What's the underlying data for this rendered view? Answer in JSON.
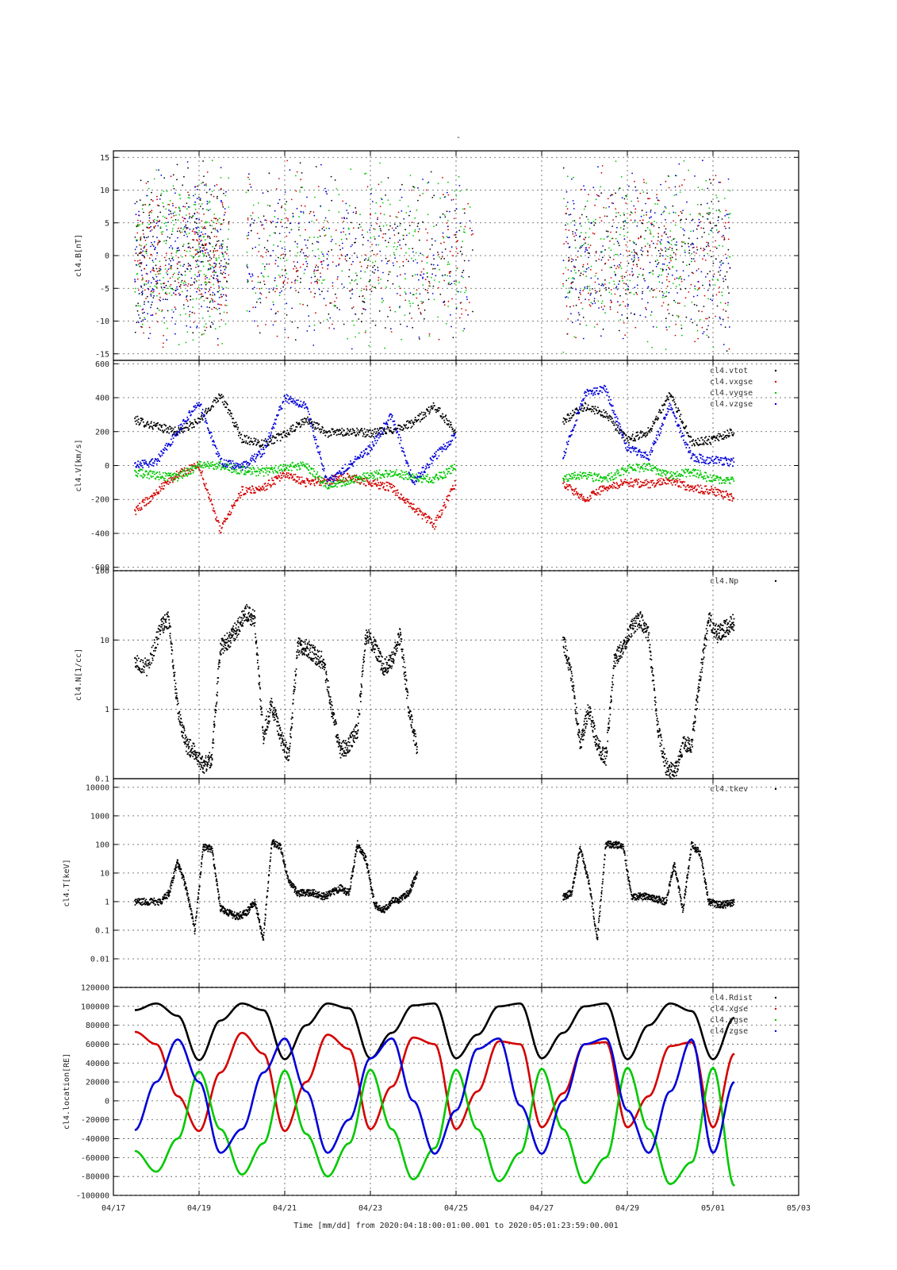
{
  "figure": {
    "top_title": "-",
    "time_label": "Time [mm/dd]  from 2020:04:18:00:01:00.001  to  2020:05:01:23:59:00.001"
  },
  "colors": {
    "black": "#000000",
    "red": "#d40000",
    "green": "#00c800",
    "blue": "#0000d8"
  },
  "chart_data": [
    {
      "type": "scatter",
      "ylabel": "cl4.B[nT]",
      "ylim": [
        -16,
        16
      ],
      "yscale": "linear",
      "yticks": [
        -15,
        -10,
        -5,
        0,
        5,
        10,
        15
      ],
      "ytick_labels": [
        "-15",
        "-10",
        "-5",
        "0",
        "5",
        "10",
        "15"
      ],
      "grid": true,
      "legend_placement": "top-right",
      "series": [
        {
          "name": "",
          "color_key": "black",
          "seed": 11
        },
        {
          "name": "",
          "color_key": "red",
          "seed": 12
        },
        {
          "name": "",
          "color_key": "green",
          "seed": 13
        },
        {
          "name": "",
          "color_key": "blue",
          "seed": 14
        }
      ]
    },
    {
      "type": "scatter",
      "ylabel": "cl4.V[km/s]",
      "ylim": [
        -620,
        620
      ],
      "yscale": "linear",
      "yticks": [
        -600,
        -400,
        -200,
        0,
        200,
        400,
        600
      ],
      "ytick_labels": [
        "-600",
        "-400",
        "-200",
        "0",
        "200",
        "400",
        "600"
      ],
      "grid": true,
      "legend_placement": "top-right",
      "series": [
        {
          "name": "cl4.vtot",
          "color_key": "black",
          "x": [
            0.0,
            0.5,
            1.0,
            1.5,
            2.0,
            2.5,
            3.0,
            3.5,
            4.0,
            4.5,
            5.0,
            5.5,
            6.0,
            6.5,
            7.0,
            7.5,
            8.0,
            8.5,
            9.0,
            9.5,
            10.0,
            10.5,
            11.0,
            11.5,
            12.0,
            12.5,
            13.0,
            13.5,
            14.0
          ],
          "y": [
            270,
            230,
            200,
            260,
            420,
            160,
            130,
            180,
            270,
            190,
            200,
            190,
            210,
            250,
            350,
            200,
            null,
            null,
            null,
            null,
            260,
            350,
            300,
            150,
            200,
            420,
            140,
            150,
            200
          ]
        },
        {
          "name": "cl4.vxgse",
          "color_key": "red",
          "x": [
            0.0,
            0.5,
            1.0,
            1.5,
            2.0,
            2.5,
            3.0,
            3.5,
            4.0,
            4.5,
            5.0,
            5.5,
            6.0,
            6.5,
            7.0,
            7.5,
            8.0,
            8.5,
            9.0,
            9.5,
            10.0,
            10.5,
            11.0,
            11.5,
            12.0,
            12.5,
            13.0,
            13.5,
            14.0
          ],
          "y": [
            -270,
            -160,
            -50,
            0,
            -380,
            -150,
            -130,
            -50,
            -100,
            -90,
            -70,
            -100,
            -130,
            -250,
            -350,
            -100,
            null,
            null,
            null,
            null,
            -100,
            -200,
            -130,
            -100,
            -110,
            -90,
            -130,
            -150,
            -190
          ]
        },
        {
          "name": "cl4.vygse",
          "color_key": "green",
          "x": [
            0.0,
            0.5,
            1.0,
            1.5,
            2.0,
            2.5,
            3.0,
            3.5,
            4.0,
            4.5,
            5.0,
            5.5,
            6.0,
            6.5,
            7.0,
            7.5,
            8.0,
            8.5,
            9.0,
            9.5,
            10.0,
            10.5,
            11.0,
            11.5,
            12.0,
            12.5,
            13.0,
            13.5,
            14.0
          ],
          "y": [
            -40,
            -60,
            -70,
            0,
            0,
            -30,
            -40,
            -10,
            0,
            -120,
            -90,
            -60,
            -40,
            -70,
            -80,
            -10,
            null,
            null,
            null,
            null,
            -70,
            -60,
            -80,
            -20,
            -10,
            -60,
            -40,
            -80,
            -90
          ]
        },
        {
          "name": "cl4.vzgse",
          "color_key": "blue",
          "x": [
            0.0,
            0.5,
            1.0,
            1.5,
            2.0,
            2.5,
            3.0,
            3.5,
            4.0,
            4.5,
            5.0,
            5.5,
            6.0,
            6.5,
            7.0,
            7.5,
            8.0,
            8.5,
            9.0,
            9.5,
            10.0,
            10.5,
            11.0,
            11.5,
            12.0,
            12.5,
            13.0,
            13.5,
            14.0
          ],
          "y": [
            0,
            20,
            200,
            380,
            20,
            -10,
            80,
            400,
            350,
            -100,
            0,
            100,
            300,
            -100,
            50,
            180,
            null,
            null,
            null,
            null,
            50,
            420,
            450,
            100,
            50,
            350,
            50,
            30,
            20
          ]
        }
      ]
    },
    {
      "type": "scatter",
      "ylabel": "cl4.N[1/cc]",
      "ylim": [
        0.1,
        100
      ],
      "yscale": "log",
      "yticks": [
        0.1,
        1,
        10,
        100
      ],
      "ytick_labels": [
        "0.1",
        "1",
        "10",
        "100"
      ],
      "grid": true,
      "legend_placement": "top-right",
      "series": [
        {
          "name": "cl4.Np",
          "color_key": "black",
          "x": [
            0.0,
            0.3,
            0.6,
            0.8,
            1.0,
            1.2,
            1.4,
            1.6,
            1.8,
            2.0,
            2.2,
            2.4,
            2.6,
            2.8,
            3.0,
            3.2,
            3.4,
            3.6,
            3.8,
            4.0,
            4.2,
            4.4,
            4.6,
            4.8,
            5.0,
            5.2,
            5.4,
            5.6,
            5.8,
            6.0,
            6.2,
            6.4,
            6.6,
            6.8,
            7.0,
            7.2,
            7.4,
            7.6,
            7.8,
            8.0,
            8.2,
            8.4,
            8.6,
            8.8,
            9.0,
            9.2,
            9.4,
            9.6,
            9.8,
            10.0,
            10.2,
            10.4,
            10.6,
            10.8,
            11.0,
            11.2,
            11.4,
            11.6,
            11.8,
            12.0,
            12.2,
            12.4,
            12.6,
            12.8,
            13.0,
            13.2,
            13.4,
            13.6,
            13.8,
            14.0
          ],
          "y": [
            5,
            4,
            15,
            20,
            1,
            0.3,
            0.25,
            0.15,
            0.2,
            8,
            10,
            15,
            25,
            20,
            0.4,
            1.2,
            0.4,
            0.2,
            8,
            8,
            6,
            5,
            1,
            0.25,
            0.3,
            0.5,
            12,
            8,
            4,
            5,
            12,
            1,
            0.25,
            null,
            null,
            null,
            null,
            null,
            null,
            null,
            null,
            null,
            null,
            null,
            null,
            null,
            null,
            null,
            null,
            10,
            3,
            0.3,
            1,
            0.3,
            0.2,
            5,
            8,
            15,
            20,
            12,
            0.6,
            0.15,
            0.12,
            0.3,
            0.3,
            3,
            20,
            12,
            15,
            18
          ]
        }
      ]
    },
    {
      "type": "scatter",
      "ylabel": "cl4.T[keV]",
      "ylim": [
        0.001,
        20000
      ],
      "yscale": "log",
      "yticks": [
        0.01,
        0.1,
        1,
        10,
        100,
        1000,
        10000
      ],
      "ytick_labels": [
        "0.01",
        "0.1",
        "1",
        "10",
        "100",
        "1000",
        "10000"
      ],
      "grid": true,
      "legend_placement": "top-right",
      "series": [
        {
          "name": "cl4.tkev",
          "color_key": "black",
          "x": [
            0.0,
            0.3,
            0.6,
            0.8,
            1.0,
            1.2,
            1.4,
            1.6,
            1.8,
            2.0,
            2.2,
            2.4,
            2.6,
            2.8,
            3.0,
            3.2,
            3.4,
            3.6,
            3.8,
            4.0,
            4.2,
            4.4,
            4.6,
            4.8,
            5.0,
            5.2,
            5.4,
            5.6,
            5.8,
            6.0,
            6.2,
            6.4,
            6.6,
            6.8,
            7.0,
            7.2,
            7.4,
            7.6,
            7.8,
            8.0,
            8.2,
            8.4,
            8.6,
            8.8,
            9.0,
            9.2,
            9.4,
            9.6,
            9.8,
            10.0,
            10.2,
            10.4,
            10.6,
            10.8,
            11.0,
            11.2,
            11.4,
            11.6,
            11.8,
            12.0,
            12.2,
            12.4,
            12.6,
            12.8,
            13.0,
            13.2,
            13.4,
            13.6,
            13.8,
            14.0
          ],
          "y": [
            1,
            1,
            1,
            2,
            25,
            3,
            0.1,
            80,
            70,
            0.6,
            0.4,
            0.3,
            0.4,
            1,
            0.05,
            120,
            80,
            5,
            2,
            2,
            2,
            1.5,
            2,
            3,
            2,
            100,
            30,
            0.8,
            0.5,
            1,
            1.2,
            2,
            10,
            null,
            null,
            null,
            null,
            null,
            null,
            null,
            null,
            null,
            null,
            null,
            null,
            null,
            null,
            null,
            null,
            1.5,
            2,
            80,
            5,
            0.05,
            100,
            100,
            90,
            1.5,
            1.5,
            1.5,
            1.2,
            1,
            20,
            0.5,
            100,
            50,
            1,
            0.8,
            0.8,
            1
          ]
        }
      ]
    },
    {
      "type": "line",
      "ylabel": "cl4.location[RE]",
      "ylim": [
        -100000,
        120000
      ],
      "yscale": "linear",
      "yticks": [
        -100000,
        -80000,
        -60000,
        -40000,
        -20000,
        0,
        20000,
        40000,
        60000,
        80000,
        100000,
        120000
      ],
      "ytick_labels": [
        "-100000",
        "-80000",
        "-60000",
        "-40000",
        "-20000",
        "0",
        "20000",
        "40000",
        "60000",
        "80000",
        "100000",
        "120000"
      ],
      "grid": true,
      "legend_placement": "top-right",
      "series": [
        {
          "name": "cl4.Rdist",
          "color_key": "black",
          "x": [
            0.0,
            0.5,
            1.0,
            1.5,
            2.0,
            2.5,
            3.0,
            3.5,
            4.0,
            4.5,
            5.0,
            5.5,
            6.0,
            6.5,
            7.0,
            7.5,
            8.0,
            8.5,
            9.0,
            9.5,
            10.0,
            10.5,
            11.0,
            11.5,
            12.0,
            12.5,
            13.0,
            13.5,
            14.0
          ],
          "y": [
            96000,
            103000,
            90000,
            43000,
            85000,
            103000,
            96000,
            44000,
            80000,
            103000,
            98000,
            45000,
            72000,
            101000,
            103000,
            45000,
            70000,
            100000,
            103000,
            45000,
            72000,
            100000,
            103000,
            44000,
            80000,
            103000,
            95000,
            44000,
            88000
          ]
        },
        {
          "name": "cl4.xgse",
          "color_key": "red",
          "x": [
            0.0,
            0.5,
            1.0,
            1.5,
            2.0,
            2.5,
            3.0,
            3.5,
            4.0,
            4.5,
            5.0,
            5.5,
            6.0,
            6.5,
            7.0,
            7.5,
            8.0,
            8.5,
            9.0,
            9.5,
            10.0,
            10.5,
            11.0,
            11.5,
            12.0,
            12.5,
            13.0,
            13.5,
            14.0
          ],
          "y": [
            73000,
            60000,
            5000,
            -32000,
            30000,
            72000,
            50000,
            -32000,
            20000,
            70000,
            55000,
            -30000,
            15000,
            67000,
            60000,
            -30000,
            10000,
            63000,
            60000,
            -28000,
            8000,
            60000,
            62000,
            -28000,
            5000,
            58000,
            62000,
            -28000,
            50000
          ]
        },
        {
          "name": "cl4.ygse",
          "color_key": "green",
          "x": [
            0.0,
            0.5,
            1.0,
            1.5,
            2.0,
            2.5,
            3.0,
            3.5,
            4.0,
            4.5,
            5.0,
            5.5,
            6.0,
            6.5,
            7.0,
            7.5,
            8.0,
            8.5,
            9.0,
            9.5,
            10.0,
            10.5,
            11.0,
            11.5,
            12.0,
            12.5,
            13.0,
            13.5,
            14.0
          ],
          "y": [
            -53000,
            -75000,
            -40000,
            31000,
            -30000,
            -78000,
            -45000,
            32000,
            -35000,
            -80000,
            -45000,
            33000,
            -30000,
            -83000,
            -50000,
            33000,
            -30000,
            -85000,
            -55000,
            34000,
            -30000,
            -87000,
            -60000,
            35000,
            -30000,
            -88000,
            -65000,
            35000,
            -90000
          ]
        },
        {
          "name": "cl4.zgse",
          "color_key": "blue",
          "x": [
            0.0,
            0.5,
            1.0,
            1.5,
            2.0,
            2.5,
            3.0,
            3.5,
            4.0,
            4.5,
            5.0,
            5.5,
            6.0,
            6.5,
            7.0,
            7.5,
            8.0,
            8.5,
            9.0,
            9.5,
            10.0,
            10.5,
            11.0,
            11.5,
            12.0,
            12.5,
            13.0,
            13.5,
            14.0
          ],
          "y": [
            -31000,
            20000,
            65000,
            20000,
            -55000,
            -30000,
            30000,
            66000,
            10000,
            -55000,
            -20000,
            45000,
            66000,
            0,
            -56000,
            -10000,
            55000,
            66000,
            -5000,
            -56000,
            0,
            60000,
            66000,
            -10000,
            -55000,
            10000,
            65000,
            -55000,
            20000
          ]
        }
      ]
    }
  ],
  "x_axis": {
    "xlim_days": [
      -0.5,
      15.5
    ],
    "ticks": [
      -0.5,
      1.5,
      3.5,
      5.5,
      7.5,
      9.5,
      11.5,
      13.5,
      15.5
    ],
    "tick_labels": [
      "04/17",
      "04/19",
      "04/21",
      "04/23",
      "04/25",
      "04/27",
      "04/29",
      "05/01",
      "05/03"
    ]
  }
}
